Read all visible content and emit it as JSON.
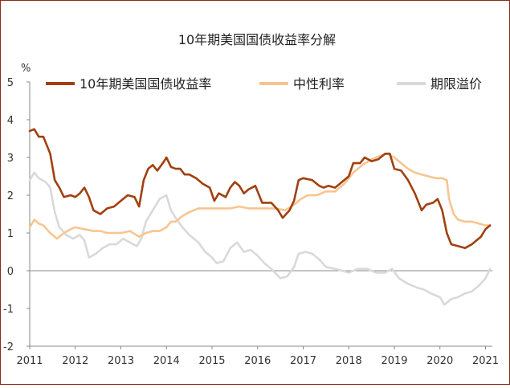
{
  "chart_data": {
    "type": "line",
    "title": "10年期美国国债收益率分解",
    "ylabel": "%",
    "xlabel": "",
    "ylim": [
      -2,
      5
    ],
    "yticks": [
      -2,
      -1,
      0,
      1,
      2,
      3,
      4,
      5
    ],
    "xlim": [
      2011.0,
      2021.15
    ],
    "xticks": [
      2011,
      2012,
      2013,
      2014,
      2015,
      2016,
      2017,
      2018,
      2019,
      2020,
      2021
    ],
    "grid": false,
    "legend_position": "top",
    "series": [
      {
        "name": "10年期美国国债收益率",
        "color": "#A0400F",
        "points": [
          [
            2011.0,
            3.7
          ],
          [
            2011.1,
            3.75
          ],
          [
            2011.2,
            3.55
          ],
          [
            2011.3,
            3.55
          ],
          [
            2011.45,
            3.1
          ],
          [
            2011.55,
            2.4
          ],
          [
            2011.65,
            2.2
          ],
          [
            2011.75,
            1.95
          ],
          [
            2011.9,
            2.0
          ],
          [
            2012.0,
            1.95
          ],
          [
            2012.1,
            2.05
          ],
          [
            2012.2,
            2.2
          ],
          [
            2012.3,
            1.95
          ],
          [
            2012.4,
            1.6
          ],
          [
            2012.55,
            1.5
          ],
          [
            2012.7,
            1.65
          ],
          [
            2012.85,
            1.7
          ],
          [
            2013.0,
            1.85
          ],
          [
            2013.15,
            2.0
          ],
          [
            2013.3,
            1.95
          ],
          [
            2013.4,
            1.7
          ],
          [
            2013.5,
            2.4
          ],
          [
            2013.6,
            2.7
          ],
          [
            2013.7,
            2.8
          ],
          [
            2013.8,
            2.65
          ],
          [
            2013.95,
            2.9
          ],
          [
            2014.0,
            3.0
          ],
          [
            2014.1,
            2.75
          ],
          [
            2014.2,
            2.7
          ],
          [
            2014.3,
            2.7
          ],
          [
            2014.4,
            2.55
          ],
          [
            2014.5,
            2.55
          ],
          [
            2014.65,
            2.45
          ],
          [
            2014.8,
            2.3
          ],
          [
            2014.95,
            2.2
          ],
          [
            2015.05,
            1.85
          ],
          [
            2015.15,
            2.05
          ],
          [
            2015.3,
            1.95
          ],
          [
            2015.4,
            2.2
          ],
          [
            2015.5,
            2.35
          ],
          [
            2015.6,
            2.25
          ],
          [
            2015.7,
            2.05
          ],
          [
            2015.8,
            2.15
          ],
          [
            2015.95,
            2.25
          ],
          [
            2016.1,
            1.8
          ],
          [
            2016.3,
            1.8
          ],
          [
            2016.45,
            1.6
          ],
          [
            2016.55,
            1.4
          ],
          [
            2016.7,
            1.6
          ],
          [
            2016.8,
            1.85
          ],
          [
            2016.9,
            2.4
          ],
          [
            2017.0,
            2.45
          ],
          [
            2017.2,
            2.4
          ],
          [
            2017.35,
            2.25
          ],
          [
            2017.45,
            2.2
          ],
          [
            2017.55,
            2.25
          ],
          [
            2017.7,
            2.2
          ],
          [
            2017.85,
            2.35
          ],
          [
            2018.0,
            2.5
          ],
          [
            2018.1,
            2.85
          ],
          [
            2018.25,
            2.85
          ],
          [
            2018.35,
            3.0
          ],
          [
            2018.5,
            2.9
          ],
          [
            2018.65,
            2.95
          ],
          [
            2018.8,
            3.1
          ],
          [
            2018.9,
            3.1
          ],
          [
            2019.0,
            2.7
          ],
          [
            2019.15,
            2.65
          ],
          [
            2019.3,
            2.4
          ],
          [
            2019.45,
            2.05
          ],
          [
            2019.6,
            1.6
          ],
          [
            2019.7,
            1.75
          ],
          [
            2019.85,
            1.8
          ],
          [
            2019.95,
            1.9
          ],
          [
            2020.05,
            1.6
          ],
          [
            2020.15,
            1.0
          ],
          [
            2020.25,
            0.7
          ],
          [
            2020.4,
            0.65
          ],
          [
            2020.55,
            0.6
          ],
          [
            2020.7,
            0.7
          ],
          [
            2020.8,
            0.8
          ],
          [
            2020.9,
            0.9
          ],
          [
            2021.0,
            1.1
          ],
          [
            2021.1,
            1.2
          ]
        ]
      },
      {
        "name": "中性利率",
        "color": "#F7C590",
        "points": [
          [
            2011.0,
            1.15
          ],
          [
            2011.1,
            1.35
          ],
          [
            2011.2,
            1.25
          ],
          [
            2011.3,
            1.2
          ],
          [
            2011.45,
            1.0
          ],
          [
            2011.6,
            0.85
          ],
          [
            2011.75,
            1.0
          ],
          [
            2011.9,
            1.1
          ],
          [
            2012.0,
            1.15
          ],
          [
            2012.2,
            1.1
          ],
          [
            2012.4,
            1.05
          ],
          [
            2012.55,
            1.05
          ],
          [
            2012.7,
            1.0
          ],
          [
            2012.85,
            1.0
          ],
          [
            2013.0,
            1.0
          ],
          [
            2013.2,
            1.05
          ],
          [
            2013.4,
            0.9
          ],
          [
            2013.55,
            1.0
          ],
          [
            2013.7,
            1.05
          ],
          [
            2013.85,
            1.05
          ],
          [
            2014.0,
            1.15
          ],
          [
            2014.1,
            1.3
          ],
          [
            2014.2,
            1.3
          ],
          [
            2014.35,
            1.45
          ],
          [
            2014.5,
            1.55
          ],
          [
            2014.7,
            1.65
          ],
          [
            2014.85,
            1.65
          ],
          [
            2015.0,
            1.65
          ],
          [
            2015.2,
            1.65
          ],
          [
            2015.4,
            1.65
          ],
          [
            2015.6,
            1.7
          ],
          [
            2015.8,
            1.65
          ],
          [
            2016.0,
            1.65
          ],
          [
            2016.2,
            1.65
          ],
          [
            2016.4,
            1.65
          ],
          [
            2016.6,
            1.6
          ],
          [
            2016.8,
            1.75
          ],
          [
            2016.95,
            1.9
          ],
          [
            2017.1,
            2.0
          ],
          [
            2017.3,
            2.0
          ],
          [
            2017.5,
            2.1
          ],
          [
            2017.7,
            2.1
          ],
          [
            2017.9,
            2.3
          ],
          [
            2018.1,
            2.6
          ],
          [
            2018.3,
            2.8
          ],
          [
            2018.5,
            2.95
          ],
          [
            2018.7,
            3.05
          ],
          [
            2018.85,
            3.1
          ],
          [
            2019.0,
            3.0
          ],
          [
            2019.15,
            2.85
          ],
          [
            2019.3,
            2.7
          ],
          [
            2019.45,
            2.6
          ],
          [
            2019.6,
            2.55
          ],
          [
            2019.75,
            2.5
          ],
          [
            2019.9,
            2.45
          ],
          [
            2020.05,
            2.45
          ],
          [
            2020.15,
            2.4
          ],
          [
            2020.2,
            1.9
          ],
          [
            2020.3,
            1.5
          ],
          [
            2020.4,
            1.35
          ],
          [
            2020.55,
            1.3
          ],
          [
            2020.7,
            1.3
          ],
          [
            2020.85,
            1.25
          ],
          [
            2021.0,
            1.2
          ],
          [
            2021.1,
            1.2
          ]
        ]
      },
      {
        "name": "期限溢价",
        "color": "#D9D9D9",
        "points": [
          [
            2011.0,
            2.4
          ],
          [
            2011.1,
            2.6
          ],
          [
            2011.2,
            2.45
          ],
          [
            2011.35,
            2.35
          ],
          [
            2011.45,
            2.2
          ],
          [
            2011.55,
            1.55
          ],
          [
            2011.65,
            1.15
          ],
          [
            2011.8,
            0.95
          ],
          [
            2011.95,
            0.85
          ],
          [
            2012.1,
            0.95
          ],
          [
            2012.2,
            0.8
          ],
          [
            2012.3,
            0.35
          ],
          [
            2012.45,
            0.45
          ],
          [
            2012.6,
            0.6
          ],
          [
            2012.75,
            0.7
          ],
          [
            2012.9,
            0.7
          ],
          [
            2013.05,
            0.85
          ],
          [
            2013.2,
            0.75
          ],
          [
            2013.35,
            0.65
          ],
          [
            2013.45,
            0.85
          ],
          [
            2013.55,
            1.3
          ],
          [
            2013.7,
            1.6
          ],
          [
            2013.85,
            1.9
          ],
          [
            2014.0,
            2.0
          ],
          [
            2014.1,
            1.6
          ],
          [
            2014.2,
            1.4
          ],
          [
            2014.35,
            1.15
          ],
          [
            2014.5,
            0.95
          ],
          [
            2014.7,
            0.75
          ],
          [
            2014.85,
            0.5
          ],
          [
            2015.0,
            0.35
          ],
          [
            2015.1,
            0.2
          ],
          [
            2015.25,
            0.25
          ],
          [
            2015.4,
            0.6
          ],
          [
            2015.55,
            0.75
          ],
          [
            2015.7,
            0.5
          ],
          [
            2015.85,
            0.55
          ],
          [
            2016.0,
            0.4
          ],
          [
            2016.15,
            0.2
          ],
          [
            2016.3,
            0.05
          ],
          [
            2016.5,
            -0.2
          ],
          [
            2016.65,
            -0.15
          ],
          [
            2016.8,
            0.1
          ],
          [
            2016.9,
            0.45
          ],
          [
            2017.05,
            0.5
          ],
          [
            2017.2,
            0.45
          ],
          [
            2017.35,
            0.3
          ],
          [
            2017.5,
            0.1
          ],
          [
            2017.7,
            0.05
          ],
          [
            2017.85,
            0.0
          ],
          [
            2018.0,
            -0.05
          ],
          [
            2018.2,
            0.05
          ],
          [
            2018.4,
            0.05
          ],
          [
            2018.6,
            -0.05
          ],
          [
            2018.8,
            -0.05
          ],
          [
            2018.95,
            0.05
          ],
          [
            2019.1,
            -0.2
          ],
          [
            2019.3,
            -0.35
          ],
          [
            2019.5,
            -0.45
          ],
          [
            2019.65,
            -0.5
          ],
          [
            2019.8,
            -0.6
          ],
          [
            2019.9,
            -0.65
          ],
          [
            2020.0,
            -0.7
          ],
          [
            2020.1,
            -0.9
          ],
          [
            2020.25,
            -0.75
          ],
          [
            2020.4,
            -0.7
          ],
          [
            2020.55,
            -0.6
          ],
          [
            2020.7,
            -0.55
          ],
          [
            2020.85,
            -0.4
          ],
          [
            2021.0,
            -0.2
          ],
          [
            2021.1,
            0.05
          ]
        ]
      }
    ]
  }
}
